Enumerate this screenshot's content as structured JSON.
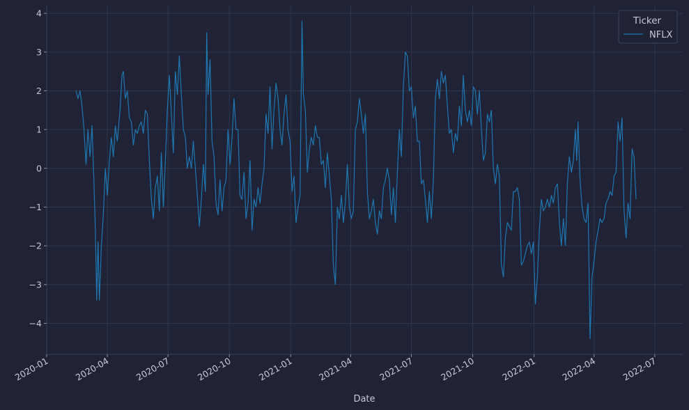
{
  "chart_data": {
    "type": "line",
    "title": "",
    "xlabel": "Date",
    "ylabel": "",
    "xlim": [
      "2020-01-01",
      "2022-08-12"
    ],
    "ylim": [
      -4.8,
      4.2
    ],
    "x_ticks": [
      "2020-01",
      "2020-04",
      "2020-07",
      "2020-10",
      "2021-01",
      "2021-04",
      "2021-07",
      "2021-10",
      "2022-01",
      "2022-04",
      "2022-07"
    ],
    "y_ticks": [
      -4,
      -3,
      -2,
      -1,
      0,
      1,
      2,
      3,
      4
    ],
    "grid": true,
    "legend": {
      "title": "Ticker",
      "position": "top-right"
    },
    "series": [
      {
        "name": "NFLX",
        "color": "#1f77b4",
        "points": [
          [
            "2020-02-14",
            2.0
          ],
          [
            "2020-02-17",
            1.8
          ],
          [
            "2020-02-20",
            2.0
          ],
          [
            "2020-02-23",
            1.6
          ],
          [
            "2020-02-26",
            1.0
          ],
          [
            "2020-02-29",
            0.1
          ],
          [
            "2020-03-03",
            1.0
          ],
          [
            "2020-03-06",
            0.3
          ],
          [
            "2020-03-09",
            1.1
          ],
          [
            "2020-03-12",
            -0.4
          ],
          [
            "2020-03-14",
            -1.6
          ],
          [
            "2020-03-16",
            -3.4
          ],
          [
            "2020-03-18",
            -1.9
          ],
          [
            "2020-03-20",
            -3.4
          ],
          [
            "2020-03-23",
            -2.0
          ],
          [
            "2020-03-26",
            -1.2
          ],
          [
            "2020-03-29",
            0.0
          ],
          [
            "2020-04-01",
            -0.7
          ],
          [
            "2020-04-04",
            0.2
          ],
          [
            "2020-04-07",
            0.8
          ],
          [
            "2020-04-10",
            0.3
          ],
          [
            "2020-04-13",
            1.1
          ],
          [
            "2020-04-16",
            0.7
          ],
          [
            "2020-04-20",
            1.5
          ],
          [
            "2020-04-23",
            2.4
          ],
          [
            "2020-04-25",
            2.5
          ],
          [
            "2020-04-28",
            1.8
          ],
          [
            "2020-05-01",
            2.0
          ],
          [
            "2020-05-04",
            1.3
          ],
          [
            "2020-05-07",
            1.2
          ],
          [
            "2020-05-10",
            0.6
          ],
          [
            "2020-05-13",
            1.0
          ],
          [
            "2020-05-16",
            0.9
          ],
          [
            "2020-05-19",
            1.1
          ],
          [
            "2020-05-22",
            1.2
          ],
          [
            "2020-05-25",
            0.9
          ],
          [
            "2020-05-28",
            1.5
          ],
          [
            "2020-05-31",
            1.4
          ],
          [
            "2020-06-03",
            0.2
          ],
          [
            "2020-06-06",
            -0.8
          ],
          [
            "2020-06-09",
            -1.3
          ],
          [
            "2020-06-12",
            -0.5
          ],
          [
            "2020-06-15",
            -0.2
          ],
          [
            "2020-06-18",
            -1.1
          ],
          [
            "2020-06-21",
            0.4
          ],
          [
            "2020-06-24",
            -1.0
          ],
          [
            "2020-06-27",
            0.2
          ],
          [
            "2020-06-30",
            1.5
          ],
          [
            "2020-07-03",
            2.4
          ],
          [
            "2020-07-06",
            1.4
          ],
          [
            "2020-07-09",
            0.4
          ],
          [
            "2020-07-12",
            2.5
          ],
          [
            "2020-07-15",
            1.9
          ],
          [
            "2020-07-18",
            2.9
          ],
          [
            "2020-07-21",
            1.9
          ],
          [
            "2020-07-24",
            1.0
          ],
          [
            "2020-07-27",
            0.8
          ],
          [
            "2020-07-30",
            0.0
          ],
          [
            "2020-08-02",
            0.3
          ],
          [
            "2020-08-05",
            0.0
          ],
          [
            "2020-08-08",
            0.7
          ],
          [
            "2020-08-11",
            0.0
          ],
          [
            "2020-08-14",
            -0.7
          ],
          [
            "2020-08-17",
            -1.5
          ],
          [
            "2020-08-20",
            -0.8
          ],
          [
            "2020-08-23",
            0.1
          ],
          [
            "2020-08-26",
            -0.6
          ],
          [
            "2020-08-28",
            3.5
          ],
          [
            "2020-08-30",
            1.9
          ],
          [
            "2020-09-02",
            2.8
          ],
          [
            "2020-09-05",
            0.7
          ],
          [
            "2020-09-08",
            0.3
          ],
          [
            "2020-09-11",
            -0.9
          ],
          [
            "2020-09-14",
            -1.2
          ],
          [
            "2020-09-17",
            -0.3
          ],
          [
            "2020-09-20",
            -1.1
          ],
          [
            "2020-09-23",
            -0.5
          ],
          [
            "2020-09-26",
            -0.3
          ],
          [
            "2020-09-29",
            1.0
          ],
          [
            "2020-10-02",
            0.1
          ],
          [
            "2020-10-05",
            0.8
          ],
          [
            "2020-10-08",
            1.8
          ],
          [
            "2020-10-11",
            1.0
          ],
          [
            "2020-10-14",
            1.0
          ],
          [
            "2020-10-17",
            -0.7
          ],
          [
            "2020-10-20",
            -0.8
          ],
          [
            "2020-10-23",
            -0.1
          ],
          [
            "2020-10-26",
            -1.3
          ],
          [
            "2020-10-29",
            -0.9
          ],
          [
            "2020-11-01",
            0.2
          ],
          [
            "2020-11-04",
            -1.6
          ],
          [
            "2020-11-07",
            -0.8
          ],
          [
            "2020-11-10",
            -1.0
          ],
          [
            "2020-11-13",
            -0.5
          ],
          [
            "2020-11-16",
            -0.9
          ],
          [
            "2020-11-19",
            -0.4
          ],
          [
            "2020-11-22",
            0.0
          ],
          [
            "2020-11-25",
            1.4
          ],
          [
            "2020-11-28",
            0.9
          ],
          [
            "2020-12-01",
            2.1
          ],
          [
            "2020-12-04",
            0.5
          ],
          [
            "2020-12-07",
            1.5
          ],
          [
            "2020-12-10",
            2.2
          ],
          [
            "2020-12-13",
            1.8
          ],
          [
            "2020-12-16",
            1.0
          ],
          [
            "2020-12-19",
            0.6
          ],
          [
            "2020-12-22",
            1.4
          ],
          [
            "2020-12-25",
            1.9
          ],
          [
            "2020-12-28",
            1.0
          ],
          [
            "2020-12-31",
            0.7
          ],
          [
            "2021-01-03",
            -0.6
          ],
          [
            "2021-01-06",
            -0.2
          ],
          [
            "2021-01-09",
            -1.4
          ],
          [
            "2021-01-12",
            -1.0
          ],
          [
            "2021-01-15",
            -0.7
          ],
          [
            "2021-01-18",
            3.8
          ],
          [
            "2021-01-20",
            1.9
          ],
          [
            "2021-01-23",
            1.5
          ],
          [
            "2021-01-26",
            -0.1
          ],
          [
            "2021-01-29",
            0.5
          ],
          [
            "2021-02-01",
            0.8
          ],
          [
            "2021-02-04",
            0.6
          ],
          [
            "2021-02-07",
            1.1
          ],
          [
            "2021-02-10",
            0.8
          ],
          [
            "2021-02-13",
            0.8
          ],
          [
            "2021-02-16",
            0.1
          ],
          [
            "2021-02-19",
            0.2
          ],
          [
            "2021-02-22",
            -0.5
          ],
          [
            "2021-02-25",
            0.4
          ],
          [
            "2021-02-28",
            -0.2
          ],
          [
            "2021-03-03",
            -0.8
          ],
          [
            "2021-03-06",
            -2.5
          ],
          [
            "2021-03-09",
            -3.0
          ],
          [
            "2021-03-12",
            -1.0
          ],
          [
            "2021-03-15",
            -1.3
          ],
          [
            "2021-03-18",
            -0.7
          ],
          [
            "2021-03-21",
            -1.4
          ],
          [
            "2021-03-24",
            -0.9
          ],
          [
            "2021-03-27",
            0.1
          ],
          [
            "2021-03-30",
            -1.0
          ],
          [
            "2021-04-02",
            -1.3
          ],
          [
            "2021-04-05",
            -1.1
          ],
          [
            "2021-04-08",
            1.0
          ],
          [
            "2021-04-11",
            1.2
          ],
          [
            "2021-04-14",
            1.8
          ],
          [
            "2021-04-17",
            1.4
          ],
          [
            "2021-04-20",
            0.9
          ],
          [
            "2021-04-23",
            1.4
          ],
          [
            "2021-04-26",
            -0.6
          ],
          [
            "2021-04-29",
            -1.3
          ],
          [
            "2021-05-02",
            -1.1
          ],
          [
            "2021-05-05",
            -0.8
          ],
          [
            "2021-05-08",
            -1.4
          ],
          [
            "2021-05-11",
            -1.7
          ],
          [
            "2021-05-14",
            -1.1
          ],
          [
            "2021-05-17",
            -1.3
          ],
          [
            "2021-05-20",
            -0.5
          ],
          [
            "2021-05-23",
            -0.3
          ],
          [
            "2021-05-26",
            0.0
          ],
          [
            "2021-05-29",
            -0.3
          ],
          [
            "2021-06-01",
            -1.2
          ],
          [
            "2021-06-04",
            -0.5
          ],
          [
            "2021-06-07",
            -1.4
          ],
          [
            "2021-06-10",
            -0.1
          ],
          [
            "2021-06-13",
            1.0
          ],
          [
            "2021-06-16",
            0.3
          ],
          [
            "2021-06-19",
            2.1
          ],
          [
            "2021-06-22",
            3.0
          ],
          [
            "2021-06-25",
            2.9
          ],
          [
            "2021-06-28",
            2.0
          ],
          [
            "2021-07-01",
            2.1
          ],
          [
            "2021-07-04",
            1.3
          ],
          [
            "2021-07-07",
            1.6
          ],
          [
            "2021-07-10",
            0.7
          ],
          [
            "2021-07-13",
            0.7
          ],
          [
            "2021-07-16",
            -0.4
          ],
          [
            "2021-07-19",
            -0.3
          ],
          [
            "2021-07-22",
            -0.8
          ],
          [
            "2021-07-25",
            -1.4
          ],
          [
            "2021-07-28",
            -0.6
          ],
          [
            "2021-07-31",
            -1.3
          ],
          [
            "2021-08-03",
            -0.3
          ],
          [
            "2021-08-06",
            1.8
          ],
          [
            "2021-08-09",
            2.3
          ],
          [
            "2021-08-12",
            1.8
          ],
          [
            "2021-08-15",
            2.5
          ],
          [
            "2021-08-18",
            2.2
          ],
          [
            "2021-08-21",
            2.4
          ],
          [
            "2021-08-24",
            1.6
          ],
          [
            "2021-08-27",
            0.9
          ],
          [
            "2021-08-30",
            1.0
          ],
          [
            "2021-09-02",
            0.4
          ],
          [
            "2021-09-05",
            0.9
          ],
          [
            "2021-09-08",
            0.7
          ],
          [
            "2021-09-11",
            1.6
          ],
          [
            "2021-09-14",
            1.1
          ],
          [
            "2021-09-17",
            2.4
          ],
          [
            "2021-09-20",
            1.5
          ],
          [
            "2021-09-23",
            1.2
          ],
          [
            "2021-09-26",
            1.5
          ],
          [
            "2021-09-29",
            1.1
          ],
          [
            "2021-10-02",
            2.1
          ],
          [
            "2021-10-05",
            2.0
          ],
          [
            "2021-10-08",
            1.4
          ],
          [
            "2021-10-11",
            2.0
          ],
          [
            "2021-10-14",
            1.0
          ],
          [
            "2021-10-17",
            0.2
          ],
          [
            "2021-10-20",
            0.4
          ],
          [
            "2021-10-23",
            1.4
          ],
          [
            "2021-10-26",
            1.2
          ],
          [
            "2021-10-29",
            1.5
          ],
          [
            "2021-11-01",
            0.0
          ],
          [
            "2021-11-04",
            -0.4
          ],
          [
            "2021-11-07",
            0.1
          ],
          [
            "2021-11-10",
            -0.2
          ],
          [
            "2021-11-13",
            -2.5
          ],
          [
            "2021-11-16",
            -2.8
          ],
          [
            "2021-11-19",
            -1.8
          ],
          [
            "2021-11-22",
            -1.4
          ],
          [
            "2021-11-25",
            -1.5
          ],
          [
            "2021-11-28",
            -1.6
          ],
          [
            "2021-12-01",
            -0.6
          ],
          [
            "2021-12-04",
            -0.6
          ],
          [
            "2021-12-07",
            -0.5
          ],
          [
            "2021-12-10",
            -0.8
          ],
          [
            "2021-12-13",
            -2.5
          ],
          [
            "2021-12-16",
            -2.4
          ],
          [
            "2021-12-19",
            -2.2
          ],
          [
            "2021-12-22",
            -2.0
          ],
          [
            "2021-12-25",
            -1.9
          ],
          [
            "2021-12-28",
            -2.2
          ],
          [
            "2021-12-31",
            -1.9
          ],
          [
            "2022-01-03",
            -3.5
          ],
          [
            "2022-01-06",
            -2.8
          ],
          [
            "2022-01-09",
            -1.6
          ],
          [
            "2022-01-12",
            -0.8
          ],
          [
            "2022-01-15",
            -1.1
          ],
          [
            "2022-01-18",
            -1.0
          ],
          [
            "2022-01-21",
            -0.8
          ],
          [
            "2022-01-24",
            -1.0
          ],
          [
            "2022-01-27",
            -0.7
          ],
          [
            "2022-01-30",
            -0.9
          ],
          [
            "2022-02-02",
            -0.5
          ],
          [
            "2022-02-05",
            -0.4
          ],
          [
            "2022-02-08",
            -1.4
          ],
          [
            "2022-02-11",
            -2.0
          ],
          [
            "2022-02-14",
            -1.3
          ],
          [
            "2022-02-17",
            -2.0
          ],
          [
            "2022-02-20",
            -0.4
          ],
          [
            "2022-02-23",
            0.3
          ],
          [
            "2022-02-26",
            -0.1
          ],
          [
            "2022-03-01",
            0.2
          ],
          [
            "2022-03-04",
            1.0
          ],
          [
            "2022-03-06",
            0.2
          ],
          [
            "2022-03-08",
            1.2
          ],
          [
            "2022-03-11",
            -0.3
          ],
          [
            "2022-03-14",
            -1.0
          ],
          [
            "2022-03-17",
            -1.3
          ],
          [
            "2022-03-20",
            -1.4
          ],
          [
            "2022-03-23",
            -0.9
          ],
          [
            "2022-03-26",
            -4.4
          ],
          [
            "2022-03-29",
            -2.8
          ],
          [
            "2022-04-01",
            -2.4
          ],
          [
            "2022-04-04",
            -1.9
          ],
          [
            "2022-04-07",
            -1.6
          ],
          [
            "2022-04-10",
            -1.3
          ],
          [
            "2022-04-13",
            -1.4
          ],
          [
            "2022-04-16",
            -1.3
          ],
          [
            "2022-04-19",
            -0.9
          ],
          [
            "2022-04-22",
            -0.8
          ],
          [
            "2022-04-25",
            -0.6
          ],
          [
            "2022-04-28",
            -0.7
          ],
          [
            "2022-05-01",
            -0.2
          ],
          [
            "2022-05-04",
            -0.1
          ],
          [
            "2022-05-07",
            1.2
          ],
          [
            "2022-05-10",
            0.7
          ],
          [
            "2022-05-13",
            1.3
          ],
          [
            "2022-05-16",
            -1.1
          ],
          [
            "2022-05-19",
            -1.8
          ],
          [
            "2022-05-22",
            -0.9
          ],
          [
            "2022-05-25",
            -1.3
          ],
          [
            "2022-05-28",
            0.5
          ],
          [
            "2022-05-31",
            0.3
          ],
          [
            "2022-06-03",
            -0.8
          ]
        ]
      }
    ]
  }
}
